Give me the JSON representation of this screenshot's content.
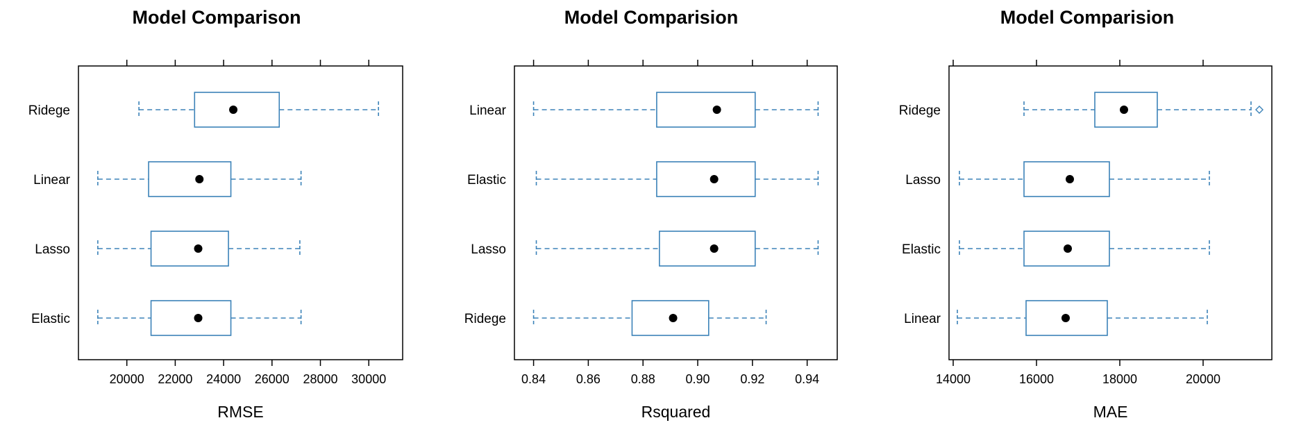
{
  "chart_data": [
    {
      "type": "boxplot",
      "title": "Model Comparison",
      "xlabel": "RMSE",
      "xlim": [
        18000,
        31400
      ],
      "xticks": [
        20000,
        22000,
        24000,
        26000,
        28000,
        30000
      ],
      "xtick_labels": [
        "20000",
        "22000",
        "24000",
        "26000",
        "28000",
        "30000"
      ],
      "top_ticks": true,
      "categories": [
        "Ridege",
        "Linear",
        "Lasso",
        "Elastic"
      ],
      "boxes": [
        {
          "label": "Ridege",
          "whisker_low": 20500,
          "q1": 22800,
          "median": 24400,
          "q3": 26300,
          "whisker_high": 30400,
          "outliers": []
        },
        {
          "label": "Linear",
          "whisker_low": 18800,
          "q1": 20900,
          "median": 23000,
          "q3": 24300,
          "whisker_high": 27200,
          "outliers": []
        },
        {
          "label": "Lasso",
          "whisker_low": 18800,
          "q1": 21000,
          "median": 22950,
          "q3": 24200,
          "whisker_high": 27150,
          "outliers": []
        },
        {
          "label": "Elastic",
          "whisker_low": 18800,
          "q1": 21000,
          "median": 22950,
          "q3": 24300,
          "whisker_high": 27200,
          "outliers": []
        }
      ]
    },
    {
      "type": "boxplot",
      "title": "Model Comparision",
      "xlabel": "Rsquared",
      "xlim": [
        0.833,
        0.951
      ],
      "xticks": [
        0.84,
        0.86,
        0.88,
        0.9,
        0.92,
        0.94
      ],
      "xtick_labels": [
        "0.84",
        "0.86",
        "0.88",
        "0.90",
        "0.92",
        "0.94"
      ],
      "top_ticks": true,
      "categories": [
        "Linear",
        "Elastic",
        "Lasso",
        "Ridege"
      ],
      "boxes": [
        {
          "label": "Linear",
          "whisker_low": 0.84,
          "q1": 0.885,
          "median": 0.907,
          "q3": 0.921,
          "whisker_high": 0.944,
          "outliers": []
        },
        {
          "label": "Elastic",
          "whisker_low": 0.841,
          "q1": 0.885,
          "median": 0.906,
          "q3": 0.921,
          "whisker_high": 0.944,
          "outliers": []
        },
        {
          "label": "Lasso",
          "whisker_low": 0.841,
          "q1": 0.886,
          "median": 0.906,
          "q3": 0.921,
          "whisker_high": 0.944,
          "outliers": []
        },
        {
          "label": "Ridege",
          "whisker_low": 0.84,
          "q1": 0.876,
          "median": 0.891,
          "q3": 0.904,
          "whisker_high": 0.925,
          "outliers": []
        }
      ]
    },
    {
      "type": "boxplot",
      "title": "Model Comparision",
      "xlabel": "MAE",
      "xlim": [
        13900,
        21650
      ],
      "xticks": [
        14000,
        16000,
        18000,
        20000
      ],
      "xtick_labels": [
        "14000",
        "16000",
        "18000",
        "20000"
      ],
      "top_ticks": true,
      "categories": [
        "Ridege",
        "Lasso",
        "Elastic",
        "Linear"
      ],
      "boxes": [
        {
          "label": "Ridege",
          "whisker_low": 15700,
          "q1": 17400,
          "median": 18100,
          "q3": 18900,
          "whisker_high": 21150,
          "outliers": [
            21350
          ]
        },
        {
          "label": "Lasso",
          "whisker_low": 14150,
          "q1": 15700,
          "median": 16800,
          "q3": 17750,
          "whisker_high": 20150,
          "outliers": []
        },
        {
          "label": "Elastic",
          "whisker_low": 14150,
          "q1": 15700,
          "median": 16750,
          "q3": 17750,
          "whisker_high": 20150,
          "outliers": []
        },
        {
          "label": "Linear",
          "whisker_low": 14100,
          "q1": 15750,
          "median": 16700,
          "q3": 17700,
          "whisker_high": 20100,
          "outliers": []
        }
      ]
    }
  ],
  "colors": {
    "box": "#3b82b8",
    "whisker": "#3b82b8",
    "median_dot": "#000000",
    "axis": "#000000"
  }
}
